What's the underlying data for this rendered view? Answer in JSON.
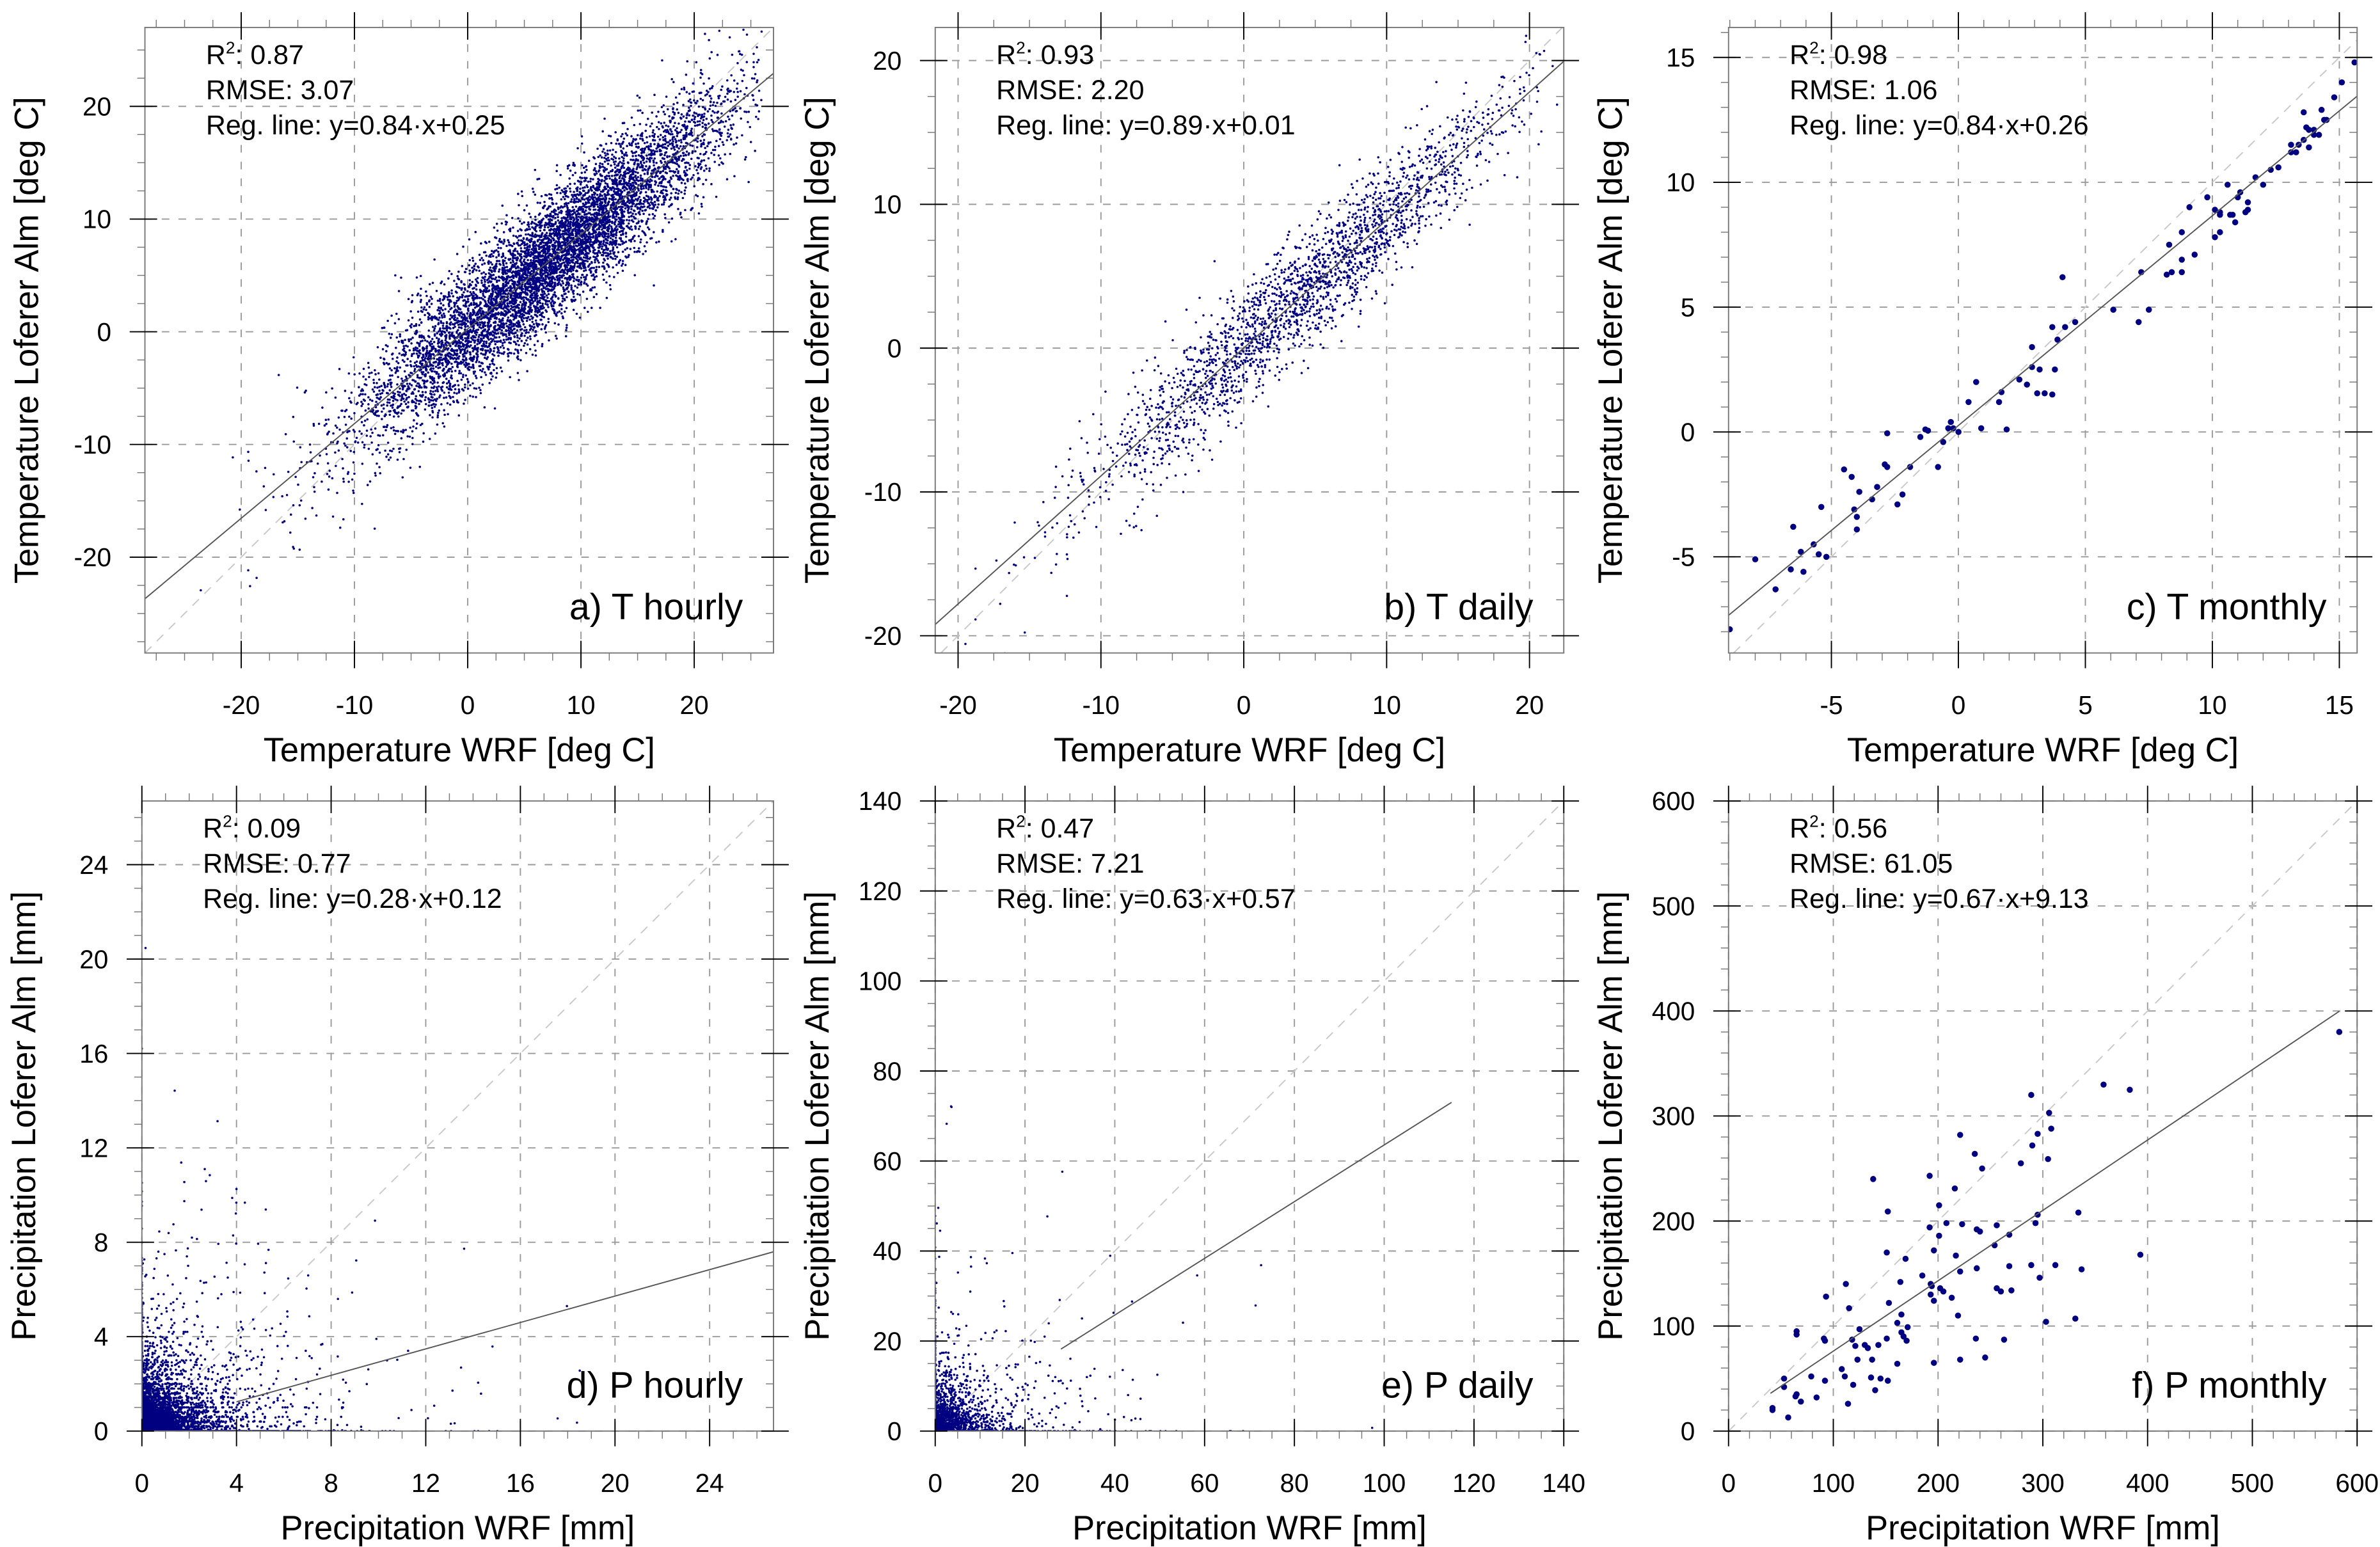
{
  "chart_data": [
    {
      "id": "a",
      "type": "scatter",
      "label": "a) T hourly",
      "xlabel": "Temperature WRF [deg C]",
      "ylabel": "Temperature Loferer Alm [deg C]",
      "xlim": [
        -28.5,
        27
      ],
      "ylim": [
        -28.5,
        27
      ],
      "xticks": [
        -20,
        -10,
        0,
        10,
        20
      ],
      "yticks": [
        -20,
        -10,
        0,
        10,
        20
      ],
      "minor_step": 2.5,
      "stats": {
        "r2_prefix": "R",
        "r2_sup": "2",
        "r2": ": 0.87",
        "rmse": "RMSE: 3.07",
        "reg_line": "Reg. line: y=0.84·x+0.25"
      },
      "regression": {
        "slope": 0.84,
        "intercept": 0.25,
        "x_range": [
          -28.5,
          27
        ]
      },
      "points_generated": {
        "n": 7000,
        "x_mean": 7,
        "x_sd": 8,
        "x_range": [
          -27,
          26
        ],
        "noise_sd": 3.07,
        "seed": 11
      }
    },
    {
      "id": "b",
      "type": "scatter",
      "label": "b) T daily",
      "xlabel": "Temperature WRF [deg C]",
      "ylabel": "Temperature Loferer Alm [deg C]",
      "xlim": [
        -21.6,
        22.4
      ],
      "ylim": [
        -21.2,
        22.3
      ],
      "xticks": [
        -20,
        -10,
        0,
        10,
        20
      ],
      "yticks": [
        -20,
        -10,
        0,
        10,
        20
      ],
      "minor_step": 2.5,
      "stats": {
        "r2_prefix": "R",
        "r2_sup": "2",
        "r2": ": 0.93",
        "rmse": "RMSE: 2.20",
        "reg_line": "Reg. line: y=0.89·x+0.01"
      },
      "regression": {
        "slope": 0.89,
        "intercept": 0.01,
        "x_range": [
          -21.6,
          22.4
        ]
      },
      "points_generated": {
        "n": 2200,
        "x_mean": 4,
        "x_sd": 7.5,
        "x_range": [
          -21,
          22
        ],
        "noise_sd": 2.2,
        "seed": 23
      }
    },
    {
      "id": "c",
      "type": "scatter",
      "label": "c) T monthly",
      "xlabel": "Temperature WRF [deg C]",
      "ylabel": "Temperature Loferer Alm [deg C]",
      "xlim": [
        -9.05,
        15.7
      ],
      "ylim": [
        -8.85,
        16.2
      ],
      "xticks": [
        -5,
        0,
        5,
        10,
        15
      ],
      "yticks": [
        -5,
        0,
        5,
        10,
        15
      ],
      "minor_step": 1,
      "stats": {
        "r2_prefix": "R",
        "r2_sup": "2",
        "r2": ": 0.98",
        "rmse": "RMSE: 1.06",
        "reg_line": "Reg. line: y=0.84·x+0.26"
      },
      "regression": {
        "slope": 0.84,
        "intercept": 0.26,
        "x_range": [
          -9.05,
          15.7
        ]
      },
      "points": [
        [
          -9,
          -7.9
        ],
        [
          -8,
          -5.1
        ],
        [
          -7.2,
          -6.3
        ],
        [
          -6.6,
          -5.5
        ],
        [
          -6.5,
          -3.8
        ],
        [
          -6.2,
          -4.8
        ],
        [
          -6.1,
          -5.6
        ],
        [
          -5.7,
          -4.5
        ],
        [
          -5.5,
          -4.9
        ],
        [
          -5.4,
          -3.0
        ],
        [
          -5.2,
          -5.0
        ],
        [
          -4.5,
          -1.5
        ],
        [
          -4.2,
          -1.8
        ],
        [
          -4.1,
          -3.1
        ],
        [
          -4.0,
          -3.4
        ],
        [
          -4.0,
          -3.9
        ],
        [
          -3.9,
          -2.4
        ],
        [
          -3.4,
          -2.7
        ],
        [
          -3.2,
          -2.2
        ],
        [
          -2.9,
          -1.3
        ],
        [
          -2.8,
          -1.4
        ],
        [
          -2.8,
          -0.05
        ],
        [
          -2.4,
          -2.9
        ],
        [
          -2.2,
          -2.5
        ],
        [
          -1.9,
          -1.4
        ],
        [
          -1.5,
          -0.2
        ],
        [
          -1.3,
          0.1
        ],
        [
          -1.2,
          0.05
        ],
        [
          -0.8,
          -1.4
        ],
        [
          -0.6,
          -0.4
        ],
        [
          -0.4,
          0.15
        ],
        [
          -0.3,
          0.4
        ],
        [
          -0.2,
          0.15
        ],
        [
          0,
          0
        ],
        [
          0.4,
          1.2
        ],
        [
          0.7,
          2.0
        ],
        [
          0.9,
          0.15
        ],
        [
          1.6,
          1.2
        ],
        [
          1.7,
          1.6
        ],
        [
          1.9,
          0.1
        ],
        [
          2.4,
          2.1
        ],
        [
          2.7,
          1.9
        ],
        [
          2.9,
          2.6
        ],
        [
          2.9,
          3.4
        ],
        [
          3.1,
          1.55
        ],
        [
          3.2,
          2.5
        ],
        [
          3.4,
          1.55
        ],
        [
          3.7,
          4.2
        ],
        [
          3.7,
          1.5
        ],
        [
          3.8,
          2.5
        ],
        [
          3.9,
          3.7
        ],
        [
          4.1,
          6.2
        ],
        [
          4.2,
          4.2
        ],
        [
          4.6,
          4.4
        ],
        [
          6.1,
          4.9
        ],
        [
          7.1,
          4.4
        ],
        [
          7.2,
          6.4
        ],
        [
          7.5,
          4.9
        ],
        [
          8.2,
          6.3
        ],
        [
          8.3,
          7.5
        ],
        [
          8.4,
          6.4
        ],
        [
          8.8,
          8.0
        ],
        [
          8.8,
          6.9
        ],
        [
          8.8,
          6.4
        ],
        [
          9.1,
          9.0
        ],
        [
          9.3,
          7.1
        ],
        [
          9.8,
          9.4
        ],
        [
          10.1,
          8.9
        ],
        [
          10.1,
          7.8
        ],
        [
          10.3,
          8.0
        ],
        [
          10.3,
          8.7
        ],
        [
          10.3,
          8.8
        ],
        [
          10.6,
          9.9
        ],
        [
          10.7,
          8.7
        ],
        [
          10.8,
          8.7
        ],
        [
          10.9,
          8.4
        ],
        [
          11.0,
          9.4
        ],
        [
          11.1,
          9.6
        ],
        [
          11.3,
          8.8
        ],
        [
          11.4,
          9.2
        ],
        [
          11.4,
          8.9
        ],
        [
          11.7,
          10.2
        ],
        [
          12.0,
          9.9
        ],
        [
          12.3,
          10.5
        ],
        [
          12.6,
          10.6
        ],
        [
          13.1,
          11.2
        ],
        [
          13.1,
          11.5
        ],
        [
          13.3,
          11.2
        ],
        [
          13.4,
          11.5
        ],
        [
          13.6,
          11.7
        ],
        [
          13.6,
          12.8
        ],
        [
          13.7,
          12.2
        ],
        [
          13.8,
          11.4
        ],
        [
          13.8,
          12.1
        ],
        [
          14.0,
          12.1
        ],
        [
          14.0,
          11.9
        ],
        [
          14.2,
          11.9
        ],
        [
          14.3,
          12.9
        ],
        [
          14.4,
          12.5
        ],
        [
          14.5,
          12.5
        ],
        [
          14.8,
          13.4
        ],
        [
          15.1,
          14.0
        ],
        [
          15.6,
          14.8
        ],
        [
          16.0,
          15.6
        ]
      ]
    },
    {
      "id": "d",
      "type": "scatter",
      "label": "d) P hourly",
      "xlabel": "Precipitation WRF [mm]",
      "ylabel": "Precipitation Loferer Alm [mm]",
      "xlim": [
        0,
        26.7
      ],
      "ylim": [
        0,
        26.7
      ],
      "xticks": [
        0,
        4,
        8,
        12,
        16,
        20,
        24
      ],
      "yticks": [
        0,
        4,
        8,
        12,
        16,
        20,
        24
      ],
      "minor_step": 1,
      "stats": {
        "r2_prefix": "R",
        "r2_sup": "2",
        "r2": ": 0.09",
        "rmse": "RMSE: 0.77",
        "reg_line": "Reg. line: y=0.28·x+0.12"
      },
      "regression": {
        "slope": 0.28,
        "intercept": 0.12,
        "x_range": [
          4,
          26.7
        ]
      },
      "points_generated": {
        "n": 6000,
        "kind": "precip",
        "scale": 1,
        "seed": 37
      }
    },
    {
      "id": "e",
      "type": "scatter",
      "label": "e) P daily",
      "xlabel": "Precipitation WRF [mm]",
      "ylabel": "Precipitation Loferer Alm [mm]",
      "xlim": [
        0,
        140
      ],
      "ylim": [
        0,
        140
      ],
      "xticks": [
        0,
        20,
        40,
        60,
        80,
        100,
        120,
        140
      ],
      "yticks": [
        0,
        20,
        40,
        60,
        80,
        100,
        120,
        140
      ],
      "minor_step": 5,
      "stats": {
        "r2_prefix": "R",
        "r2_sup": "2",
        "r2": ": 0.47",
        "rmse": "RMSE: 7.21",
        "reg_line": "Reg. line: y=0.63·x+0.57"
      },
      "regression": {
        "slope": 0.63,
        "intercept": 0.57,
        "x_range": [
          28,
          115
        ]
      },
      "points_generated": {
        "n": 1800,
        "kind": "precip",
        "scale": 5.5,
        "seed": 53
      }
    },
    {
      "id": "f",
      "type": "scatter",
      "label": "f) P monthly",
      "xlabel": "Precipitation WRF [mm]",
      "ylabel": "Precipitation Loferer Alm [mm]",
      "xlim": [
        0,
        600
      ],
      "ylim": [
        0,
        600
      ],
      "xticks": [
        0,
        100,
        200,
        300,
        400,
        500,
        600
      ],
      "yticks": [
        0,
        100,
        200,
        300,
        400,
        500,
        600
      ],
      "minor_step": 20,
      "stats": {
        "r2_prefix": "R",
        "r2_sup": "2",
        "r2": ": 0.56",
        "rmse": "RMSE: 61.05",
        "reg_line": "Reg. line: y=0.67·x+9.13"
      },
      "regression": {
        "slope": 0.67,
        "intercept": 9.13,
        "x_range": [
          40,
          583
        ]
      },
      "points": [
        [
          42,
          22
        ],
        [
          42,
          20
        ],
        [
          53,
          42
        ],
        [
          53,
          50
        ],
        [
          57,
          13
        ],
        [
          64,
          33
        ],
        [
          65,
          35
        ],
        [
          65,
          95
        ],
        [
          65,
          92
        ],
        [
          69,
          28
        ],
        [
          79,
          52
        ],
        [
          84,
          32
        ],
        [
          91,
          88
        ],
        [
          92,
          86
        ],
        [
          92,
          48
        ],
        [
          93,
          128
        ],
        [
          108,
          59
        ],
        [
          111,
          52
        ],
        [
          112,
          140
        ],
        [
          114,
          26
        ],
        [
          115,
          117
        ],
        [
          118,
          87
        ],
        [
          119,
          44
        ],
        [
          121,
          81
        ],
        [
          123,
          68
        ],
        [
          125,
          97
        ],
        [
          130,
          82
        ],
        [
          133,
          79
        ],
        [
          136,
          51
        ],
        [
          137,
          68
        ],
        [
          138,
          240
        ],
        [
          140,
          39
        ],
        [
          143,
          82
        ],
        [
          145,
          50
        ],
        [
          151,
          88
        ],
        [
          151,
          170
        ],
        [
          152,
          48
        ],
        [
          152,
          209
        ],
        [
          153,
          122
        ],
        [
          161,
          64
        ],
        [
          161,
          103
        ],
        [
          164,
          142
        ],
        [
          165,
          111
        ],
        [
          165,
          94
        ],
        [
          167,
          90
        ],
        [
          169,
          164
        ],
        [
          170,
          86
        ],
        [
          171,
          99
        ],
        [
          185,
          148
        ],
        [
          192,
          243
        ],
        [
          192,
          194
        ],
        [
          193,
          130
        ],
        [
          193,
          140
        ],
        [
          194,
          138
        ],
        [
          196,
          124
        ],
        [
          196,
          172
        ],
        [
          196,
          65
        ],
        [
          201,
          215
        ],
        [
          201,
          186
        ],
        [
          202,
          136
        ],
        [
          205,
          133
        ],
        [
          208,
          198
        ],
        [
          213,
          127
        ],
        [
          216,
          231
        ],
        [
          217,
          167
        ],
        [
          219,
          110
        ],
        [
          221,
          282
        ],
        [
          221,
          152
        ],
        [
          221,
          68
        ],
        [
          223,
          197
        ],
        [
          235,
          264
        ],
        [
          236,
          88
        ],
        [
          237,
          192
        ],
        [
          237,
          155
        ],
        [
          240,
          190
        ],
        [
          242,
          250
        ],
        [
          245,
          70
        ],
        [
          254,
          177
        ],
        [
          256,
          136
        ],
        [
          256,
          196
        ],
        [
          260,
          133
        ],
        [
          263,
          87
        ],
        [
          268,
          157
        ],
        [
          268,
          187
        ],
        [
          270,
          134
        ],
        [
          279,
          255
        ],
        [
          289,
          320
        ],
        [
          289,
          158
        ],
        [
          290,
          272
        ],
        [
          293,
          198
        ],
        [
          295,
          283
        ],
        [
          295,
          206
        ],
        [
          297,
          146
        ],
        [
          303,
          104
        ],
        [
          305,
          259
        ],
        [
          306,
          303
        ],
        [
          308,
          288
        ],
        [
          312,
          158
        ],
        [
          331,
          107
        ],
        [
          334,
          208
        ],
        [
          337,
          154
        ],
        [
          358,
          330
        ],
        [
          383,
          325
        ],
        [
          393,
          168
        ],
        [
          583,
          380
        ]
      ]
    }
  ],
  "colors": {
    "points": "#000080",
    "grid": "#9a9a9a",
    "axis": "#000000",
    "reg_line": "#555555",
    "one_to_one": "#c8c8c8"
  }
}
